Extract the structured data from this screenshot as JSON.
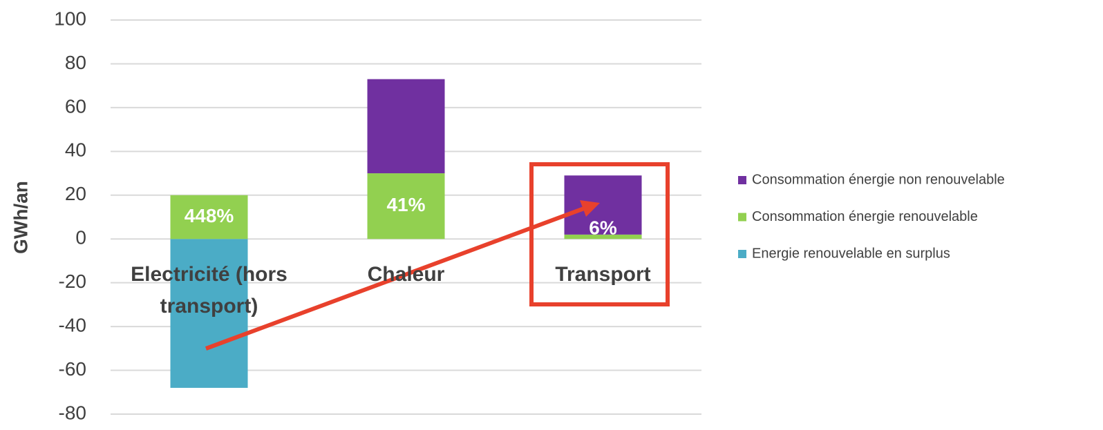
{
  "chart_data": {
    "type": "stacked_bar",
    "y_label": "GWh/an",
    "categories": [
      "Electricité (hors transport)",
      "Chaleur",
      "Transport"
    ],
    "series": [
      {
        "name": "Energie renouvelable en surplus",
        "color": "#4bacc6",
        "values": [
          -68,
          0,
          0
        ]
      },
      {
        "name": "Consommation énergie renouvelable",
        "color": "#92d050",
        "values": [
          20,
          30,
          2
        ]
      },
      {
        "name": "Consommation énergie non renouvelable",
        "color": "#7030a0",
        "values": [
          0,
          43,
          27
        ]
      }
    ],
    "ratio_labels": [
      "448%",
      "41%",
      "6%"
    ],
    "ylim": [
      -80,
      100
    ],
    "yticks": [
      -80,
      -60,
      -40,
      -20,
      0,
      20,
      40,
      60,
      80,
      100
    ],
    "grid": true,
    "legend": "right"
  }
}
